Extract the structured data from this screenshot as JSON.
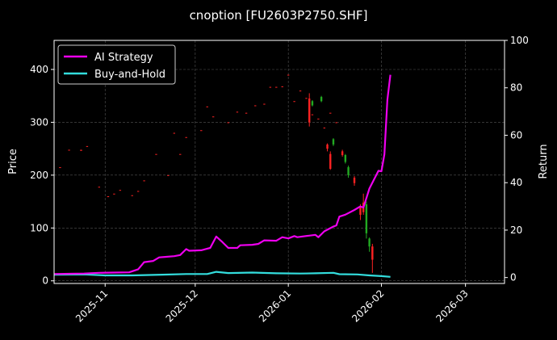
{
  "chart_data": {
    "type": "line",
    "title": "cnoption [FU2603P2750.SHF]",
    "xlabel": "",
    "ylabel": "Price",
    "ylabel_right": "Return",
    "grid": true,
    "legend_placement": "top-left",
    "x_range": [
      "2025-10-15",
      "2026-03-14"
    ],
    "ylim": [
      -5,
      455
    ],
    "ylim_right": [
      -2.5,
      100
    ],
    "x_ticks": [
      "2025-11",
      "2025-12",
      "2026-01",
      "2026-02",
      "2026-03"
    ],
    "y_ticks": [
      0,
      100,
      200,
      300,
      400
    ],
    "y_ticks_right": [
      0,
      20,
      40,
      60,
      80,
      100
    ],
    "colors": {
      "background": "#000000",
      "up": "#22aa22",
      "down": "#ff2222",
      "ai_strategy": "#ee00ee",
      "buy_and_hold": "#33dddd"
    },
    "series": [
      {
        "name": "AI Strategy",
        "axis": "right",
        "points": [
          [
            "2025-10-15",
            1.5
          ],
          [
            "2025-10-20",
            1.6
          ],
          [
            "2025-10-25",
            1.7
          ],
          [
            "2025-10-30",
            2.0
          ],
          [
            "2025-11-04",
            2.1
          ],
          [
            "2025-11-09",
            2.2
          ],
          [
            "2025-11-12",
            3.5
          ],
          [
            "2025-11-14",
            6.5
          ],
          [
            "2025-11-17",
            7.0
          ],
          [
            "2025-11-19",
            8.5
          ],
          [
            "2025-11-21",
            8.7
          ],
          [
            "2025-11-24",
            9.0
          ],
          [
            "2025-11-26",
            9.5
          ],
          [
            "2025-11-28",
            12.0
          ],
          [
            "2025-11-29",
            11.3
          ],
          [
            "2025-12-03",
            11.5
          ],
          [
            "2025-12-06",
            12.5
          ],
          [
            "2025-12-08",
            17.3
          ],
          [
            "2025-12-10",
            15.0
          ],
          [
            "2025-12-12",
            12.5
          ],
          [
            "2025-12-15",
            12.5
          ],
          [
            "2025-12-16",
            13.6
          ],
          [
            "2025-12-20",
            13.8
          ],
          [
            "2025-12-22",
            14.2
          ],
          [
            "2025-12-24",
            15.7
          ],
          [
            "2025-12-28",
            15.5
          ],
          [
            "2025-12-30",
            17.0
          ],
          [
            "2026-01-01",
            16.5
          ],
          [
            "2026-01-03",
            17.5
          ],
          [
            "2026-01-04",
            17.0
          ],
          [
            "2026-01-10",
            18.0
          ],
          [
            "2026-01-11",
            17.0
          ],
          [
            "2026-01-13",
            19.5
          ],
          [
            "2026-01-16",
            21.5
          ],
          [
            "2026-01-17",
            22.0
          ],
          [
            "2026-01-18",
            25.7
          ],
          [
            "2026-01-20",
            26.5
          ],
          [
            "2026-01-23",
            28.5
          ],
          [
            "2026-01-25",
            30.0
          ],
          [
            "2026-01-26",
            29.5
          ],
          [
            "2026-01-28",
            37.5
          ],
          [
            "2026-01-31",
            45.0
          ],
          [
            "2026-02-01",
            44.8
          ],
          [
            "2026-02-02",
            52.0
          ],
          [
            "2026-02-03",
            75.0
          ],
          [
            "2026-02-04",
            85.5
          ]
        ]
      },
      {
        "name": "Buy-and-Hold",
        "axis": "right",
        "points": [
          [
            "2025-10-15",
            1.2
          ],
          [
            "2025-10-25",
            1.3
          ],
          [
            "2025-11-01",
            0.9
          ],
          [
            "2025-11-10",
            0.9
          ],
          [
            "2025-11-20",
            1.2
          ],
          [
            "2025-11-28",
            1.5
          ],
          [
            "2025-12-05",
            1.5
          ],
          [
            "2025-12-08",
            2.4
          ],
          [
            "2025-12-12",
            1.9
          ],
          [
            "2025-12-20",
            2.1
          ],
          [
            "2025-12-28",
            1.8
          ],
          [
            "2026-01-05",
            1.7
          ],
          [
            "2026-01-10",
            1.8
          ],
          [
            "2026-01-16",
            2.0
          ],
          [
            "2026-01-18",
            1.4
          ],
          [
            "2026-01-24",
            1.3
          ],
          [
            "2026-01-28",
            0.9
          ],
          [
            "2026-02-01",
            0.6
          ],
          [
            "2026-02-04",
            0.3
          ]
        ]
      }
    ],
    "candles": [
      {
        "date": "2025-10-17",
        "open": 215,
        "close": 214
      },
      {
        "date": "2025-10-20",
        "open": 248,
        "close": 247
      },
      {
        "date": "2025-10-24",
        "open": 248,
        "close": 246
      },
      {
        "date": "2025-10-26",
        "open": 255,
        "close": 254
      },
      {
        "date": "2025-10-30",
        "open": 178,
        "close": 177
      },
      {
        "date": "2025-11-02",
        "open": 160,
        "close": 159
      },
      {
        "date": "2025-11-04",
        "open": 165,
        "close": 164
      },
      {
        "date": "2025-11-06",
        "open": 172,
        "close": 171
      },
      {
        "date": "2025-11-10",
        "open": 162,
        "close": 161
      },
      {
        "date": "2025-11-12",
        "open": 170,
        "close": 169
      },
      {
        "date": "2025-11-14",
        "open": 190,
        "close": 189
      },
      {
        "date": "2025-11-18",
        "open": 240,
        "close": 239
      },
      {
        "date": "2025-11-22",
        "open": 200,
        "close": 199
      },
      {
        "date": "2025-11-24",
        "open": 280,
        "close": 279
      },
      {
        "date": "2025-11-26",
        "open": 240,
        "close": 239
      },
      {
        "date": "2025-11-28",
        "open": 272,
        "close": 271
      },
      {
        "date": "2025-12-03",
        "open": 285,
        "close": 284
      },
      {
        "date": "2025-12-05",
        "open": 330,
        "close": 329
      },
      {
        "date": "2025-12-07",
        "open": 311,
        "close": 310
      },
      {
        "date": "2025-12-12",
        "open": 300,
        "close": 299
      },
      {
        "date": "2025-12-15",
        "open": 320,
        "close": 319
      },
      {
        "date": "2025-12-18",
        "open": 318,
        "close": 317
      },
      {
        "date": "2025-12-21",
        "open": 332,
        "close": 331
      },
      {
        "date": "2025-12-24",
        "open": 335,
        "close": 334
      },
      {
        "date": "2025-12-26",
        "open": 367,
        "close": 366
      },
      {
        "date": "2025-12-28",
        "open": 367,
        "close": 366
      },
      {
        "date": "2025-12-30",
        "open": 368,
        "close": 367
      },
      {
        "date": "2026-01-01",
        "open": 390,
        "close": 389
      },
      {
        "date": "2026-01-03",
        "open": 340,
        "close": 339
      },
      {
        "date": "2026-01-05",
        "open": 360,
        "close": 359
      },
      {
        "date": "2026-01-07",
        "open": 346,
        "close": 345
      },
      {
        "date": "2026-01-09",
        "open": 315,
        "close": 314
      },
      {
        "date": "2026-01-11",
        "open": 307,
        "close": 306
      },
      {
        "date": "2026-01-13",
        "open": 290,
        "close": 289
      },
      {
        "date": "2026-01-15",
        "open": 318,
        "close": 317
      },
      {
        "date": "2026-01-17",
        "open": 300,
        "close": 299
      },
      {
        "date": "2026-01-08",
        "open": 345,
        "close": 300,
        "high": 355,
        "low": 292
      },
      {
        "date": "2026-01-09",
        "open": 332,
        "close": 340,
        "high": 342,
        "low": 330
      },
      {
        "date": "2026-01-12",
        "open": 340,
        "close": 348,
        "high": 350,
        "low": 338
      },
      {
        "date": "2026-01-14",
        "open": 258,
        "close": 250,
        "high": 260,
        "low": 245
      },
      {
        "date": "2026-01-15",
        "open": 240,
        "close": 212,
        "high": 245,
        "low": 210
      },
      {
        "date": "2026-01-16",
        "open": 258,
        "close": 268,
        "high": 270,
        "low": 255
      },
      {
        "date": "2026-01-19",
        "open": 245,
        "close": 238,
        "high": 248,
        "low": 235
      },
      {
        "date": "2026-01-20",
        "open": 225,
        "close": 238,
        "high": 240,
        "low": 222
      },
      {
        "date": "2026-01-21",
        "open": 200,
        "close": 215,
        "high": 218,
        "low": 195
      },
      {
        "date": "2026-01-23",
        "open": 195,
        "close": 185,
        "high": 198,
        "low": 180
      },
      {
        "date": "2026-01-25",
        "open": 140,
        "close": 125,
        "high": 145,
        "low": 115
      },
      {
        "date": "2026-01-26",
        "open": 148,
        "close": 130,
        "high": 165,
        "low": 125
      },
      {
        "date": "2026-01-27",
        "open": 90,
        "close": 145,
        "high": 150,
        "low": 80
      },
      {
        "date": "2026-01-28",
        "open": 65,
        "close": 80,
        "high": 82,
        "low": 55
      },
      {
        "date": "2026-01-29",
        "open": 65,
        "close": 40,
        "high": 70,
        "low": 15
      }
    ]
  }
}
